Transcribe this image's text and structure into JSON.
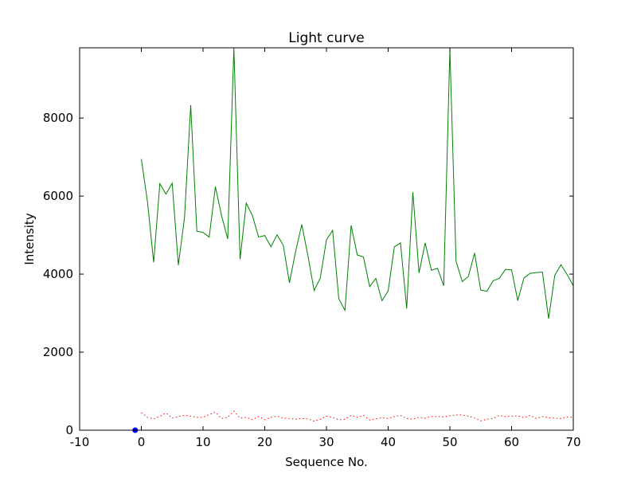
{
  "chart_data": {
    "type": "line",
    "title": "Light curve",
    "xlabel": "Sequence No.",
    "ylabel": "Intensity",
    "xlim": [
      -10,
      70
    ],
    "ylim": [
      0,
      9800
    ],
    "xticks": [
      -10,
      0,
      10,
      20,
      30,
      40,
      50,
      60,
      70
    ],
    "yticks": [
      0,
      2000,
      4000,
      6000,
      8000
    ],
    "grid": false,
    "colors": {
      "signal": "#008000",
      "noise": "#ff0000",
      "marker": "#0000ff"
    },
    "series": [
      {
        "style": "solid",
        "color": "#008000",
        "x": [
          0,
          1,
          2,
          3,
          4,
          5,
          6,
          7,
          8,
          9,
          10,
          11,
          12,
          13,
          14,
          15,
          16,
          17,
          18,
          19,
          20,
          21,
          22,
          23,
          24,
          25,
          26,
          27,
          28,
          29,
          30,
          31,
          32,
          33,
          34,
          35,
          36,
          37,
          38,
          39,
          40,
          41,
          42,
          43,
          44,
          45,
          46,
          47,
          48,
          49,
          50,
          51,
          52,
          53,
          54,
          55,
          56,
          57,
          58,
          59,
          60,
          61,
          62,
          63,
          64,
          65,
          66,
          67,
          68,
          69,
          70
        ],
        "y": [
          6950,
          5850,
          4300,
          6320,
          6050,
          6330,
          4230,
          5450,
          8330,
          5100,
          5070,
          4950,
          6240,
          5500,
          4900,
          9800,
          4380,
          5820,
          5500,
          4950,
          4990,
          4700,
          5010,
          4740,
          3780,
          4580,
          5270,
          4470,
          3580,
          3900,
          4880,
          5120,
          3370,
          3070,
          5250,
          4490,
          4440,
          3680,
          3890,
          3320,
          3570,
          4700,
          4800,
          3120,
          6100,
          4030,
          4800,
          4100,
          4150,
          3700,
          9760,
          4330,
          3810,
          3940,
          4540,
          3590,
          3560,
          3830,
          3890,
          4120,
          4110,
          3320,
          3900,
          4020,
          4040,
          4050,
          2860,
          3970,
          4240,
          3990,
          3700
        ]
      },
      {
        "style": "dotted",
        "color": "#ff0000",
        "x": [
          0,
          1,
          2,
          3,
          4,
          5,
          6,
          7,
          8,
          9,
          10,
          11,
          12,
          13,
          14,
          15,
          16,
          17,
          18,
          19,
          20,
          21,
          22,
          23,
          24,
          25,
          26,
          27,
          28,
          29,
          30,
          31,
          32,
          33,
          34,
          35,
          36,
          37,
          38,
          39,
          40,
          41,
          42,
          43,
          44,
          45,
          46,
          47,
          48,
          49,
          50,
          51,
          52,
          53,
          54,
          55,
          56,
          57,
          58,
          59,
          60,
          61,
          62,
          63,
          64,
          65,
          66,
          67,
          68,
          69,
          70
        ],
        "y": [
          450,
          330,
          290,
          360,
          440,
          310,
          350,
          380,
          360,
          330,
          330,
          400,
          460,
          300,
          330,
          490,
          310,
          330,
          270,
          350,
          270,
          330,
          360,
          310,
          300,
          280,
          300,
          290,
          230,
          280,
          360,
          330,
          270,
          280,
          380,
          330,
          380,
          260,
          290,
          320,
          300,
          350,
          380,
          300,
          280,
          330,
          310,
          350,
          350,
          340,
          370,
          390,
          390,
          360,
          310,
          240,
          280,
          300,
          380,
          350,
          360,
          370,
          320,
          380,
          300,
          350,
          320,
          310,
          300,
          340,
          330
        ]
      },
      {
        "style": "marker",
        "color": "#0000ff",
        "x": [
          -1
        ],
        "y": [
          0
        ]
      }
    ]
  }
}
